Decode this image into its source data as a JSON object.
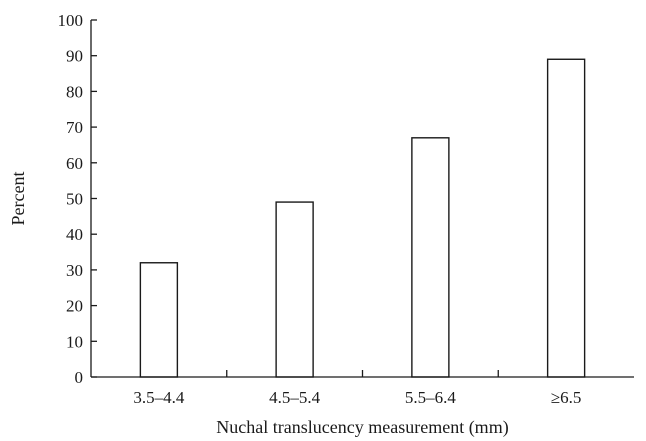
{
  "chart_data": {
    "type": "bar",
    "title": "",
    "xlabel": "Nuchal translucency measurement (mm)",
    "ylabel": "Percent",
    "categories": [
      "3.5–4.4",
      "4.5–5.4",
      "5.5–6.4",
      "≥6.5"
    ],
    "values": [
      32,
      49,
      67,
      89
    ],
    "ylim": [
      0,
      100
    ],
    "yticks": [
      0,
      10,
      20,
      30,
      40,
      50,
      60,
      70,
      80,
      90,
      100
    ],
    "grid": false,
    "bar_fill": "#ffffff",
    "bar_stroke": "#1a1a1a"
  }
}
